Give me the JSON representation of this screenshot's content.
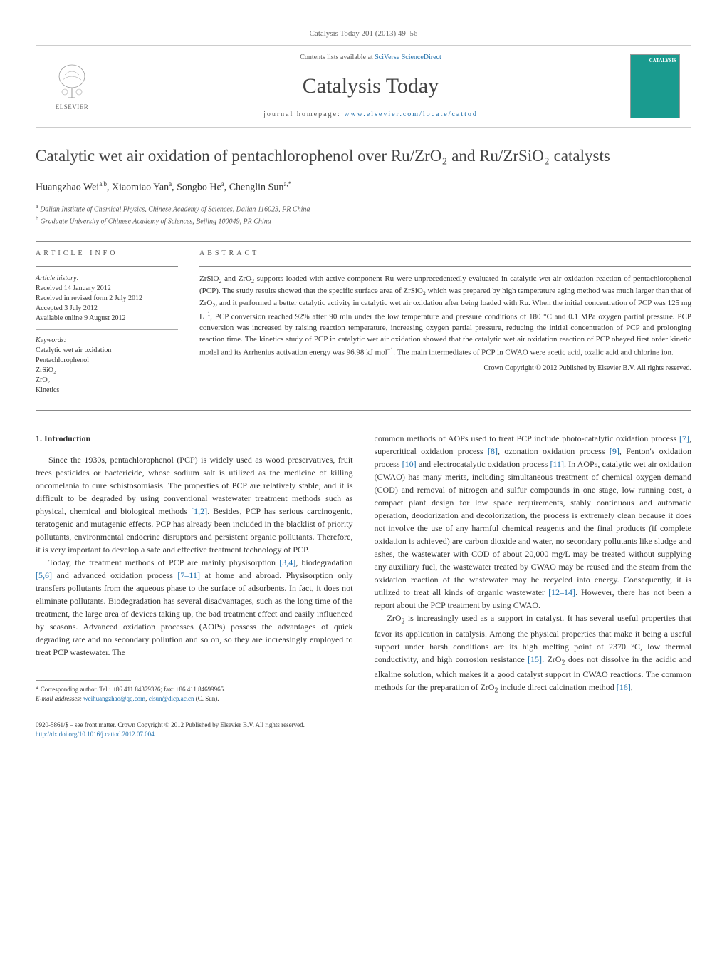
{
  "journal_header": "Catalysis Today 201 (2013) 49–56",
  "header": {
    "contents_prefix": "Contents lists available at ",
    "contents_link": "SciVerse ScienceDirect",
    "journal_name": "Catalysis Today",
    "homepage_prefix": "journal homepage: ",
    "homepage_link": "www.elsevier.com/locate/cattod",
    "publisher": "ELSEVIER",
    "cover_label": "CATALYSIS"
  },
  "title": "Catalytic wet air oxidation of pentachlorophenol over Ru/ZrO₂ and Ru/ZrSiO₂ catalysts",
  "authors_html": "Huangzhao Wei<sup>a,b</sup>, Xiaomiao Yan<sup>a</sup>, Songbo He<sup>a</sup>, Chenglin Sun<sup>a,*</sup>",
  "affiliations": [
    {
      "sup": "a",
      "text": "Dalian Institute of Chemical Physics, Chinese Academy of Sciences, Dalian 116023, PR China"
    },
    {
      "sup": "b",
      "text": "Graduate University of Chinese Academy of Sciences, Beijing 100049, PR China"
    }
  ],
  "article_info": {
    "heading": "ARTICLE INFO",
    "history_label": "Article history:",
    "history": [
      "Received 14 January 2012",
      "Received in revised form 2 July 2012",
      "Accepted 3 July 2012",
      "Available online 9 August 2012"
    ],
    "keywords_label": "Keywords:",
    "keywords": [
      "Catalytic wet air oxidation",
      "Pentachlorophenol",
      "ZrSiO₂",
      "ZrO₂",
      "Kinetics"
    ]
  },
  "abstract": {
    "heading": "ABSTRACT",
    "text_html": "ZrSiO<sub>2</sub> and ZrO<sub>2</sub> supports loaded with active component Ru were unprecedentedly evaluated in catalytic wet air oxidation reaction of pentachlorophenol (PCP). The study results showed that the specific surface area of ZrSiO<sub>2</sub> which was prepared by high temperature aging method was much larger than that of ZrO<sub>2</sub>, and it performed a better catalytic activity in catalytic wet air oxidation after being loaded with Ru. When the initial concentration of PCP was 125 mg L<sup>−1</sup>, PCP conversion reached 92% after 90 min under the low temperature and pressure conditions of 180 °C and 0.1 MPa oxygen partial pressure. PCP conversion was increased by raising reaction temperature, increasing oxygen partial pressure, reducing the initial concentration of PCP and prolonging reaction time. The kinetics study of PCP in catalytic wet air oxidation showed that the catalytic wet air oxidation reaction of PCP obeyed first order kinetic model and its Arrhenius activation energy was 96.98 kJ mol<sup>−1</sup>. The main intermediates of PCP in CWAO were acetic acid, oxalic acid and chlorine ion.",
    "copyright": "Crown Copyright © 2012 Published by Elsevier B.V. All rights reserved."
  },
  "body": {
    "section_heading": "1. Introduction",
    "col1_p1_html": "Since the 1930s, pentachlorophenol (PCP) is widely used as wood preservatives, fruit trees pesticides or bactericide, whose sodium salt is utilized as the medicine of killing oncomelania to cure schistosomiasis. The properties of PCP are relatively stable, and it is difficult to be degraded by using conventional wastewater treatment methods such as physical, chemical and biological methods <span class=\"ref-link\">[1,2]</span>. Besides, PCP has serious carcinogenic, teratogenic and mutagenic effects. PCP has already been included in the blacklist of priority pollutants, environmental endocrine disruptors and persistent organic pollutants. Therefore, it is very important to develop a safe and effective treatment technology of PCP.",
    "col1_p2_html": "Today, the treatment methods of PCP are mainly physisorption <span class=\"ref-link\">[3,4]</span>, biodegradation <span class=\"ref-link\">[5,6]</span> and advanced oxidation process <span class=\"ref-link\">[7–11]</span> at home and abroad. Physisorption only transfers pollutants from the aqueous phase to the surface of adsorbents. In fact, it does not eliminate pollutants. Biodegradation has several disadvantages, such as the long time of the treatment, the large area of devices taking up, the bad treatment effect and easily influenced by seasons. Advanced oxidation processes (AOPs) possess the advantages of quick degrading rate and no secondary pollution and so on, so they are increasingly employed to treat PCP wastewater. The",
    "col2_p1_html": "common methods of AOPs used to treat PCP include photo-catalytic oxidation process <span class=\"ref-link\">[7]</span>, supercritical oxidation process <span class=\"ref-link\">[8]</span>, ozonation oxidation process <span class=\"ref-link\">[9]</span>, Fenton's oxidation process <span class=\"ref-link\">[10]</span> and electrocatalytic oxidation process <span class=\"ref-link\">[11]</span>. In AOPs, catalytic wet air oxidation (CWAO) has many merits, including simultaneous treatment of chemical oxygen demand (COD) and removal of nitrogen and sulfur compounds in one stage, low running cost, a compact plant design for low space requirements, stably continuous and automatic operation, deodorization and decolorization, the process is extremely clean because it does not involve the use of any harmful chemical reagents and the final products (if complete oxidation is achieved) are carbon dioxide and water, no secondary pollutants like sludge and ashes, the wastewater with COD of about 20,000 mg/L may be treated without supplying any auxiliary fuel, the wastewater treated by CWAO may be reused and the steam from the oxidation reaction of the wastewater may be recycled into energy. Consequently, it is utilized to treat all kinds of organic wastewater <span class=\"ref-link\">[12–14]</span>. However, there has not been a report about the PCP treatment by using CWAO.",
    "col2_p2_html": "ZrO<sub>2</sub> is increasingly used as a support in catalyst. It has several useful properties that favor its application in catalysis. Among the physical properties that make it being a useful support under harsh conditions are its high melting point of 2370 °C, low thermal conductivity, and high corrosion resistance <span class=\"ref-link\">[15]</span>. ZrO<sub>2</sub> does not dissolve in the acidic and alkaline solution, which makes it a good catalyst support in CWAO reactions. The common methods for the preparation of ZrO<sub>2</sub> include direct calcination method <span class=\"ref-link\">[16]</span>,"
  },
  "footnote": {
    "corresponding": "* Corresponding author. Tel.: +86 411 84379326; fax: +86 411 84699965.",
    "email_label": "E-mail addresses: ",
    "email1": "weihuangzhao@qq.com",
    "email_sep": ", ",
    "email2": "clsun@dicp.ac.cn",
    "email_suffix": " (C. Sun)."
  },
  "footer": {
    "line1": "0920-5861/$ – see front matter. Crown Copyright © 2012 Published by Elsevier B.V. All rights reserved.",
    "doi": "http://dx.doi.org/10.1016/j.cattod.2012.07.004"
  },
  "colors": {
    "link": "#1a6ba8",
    "text": "#333333",
    "muted": "#555555",
    "cover": "#1a9b8f"
  }
}
